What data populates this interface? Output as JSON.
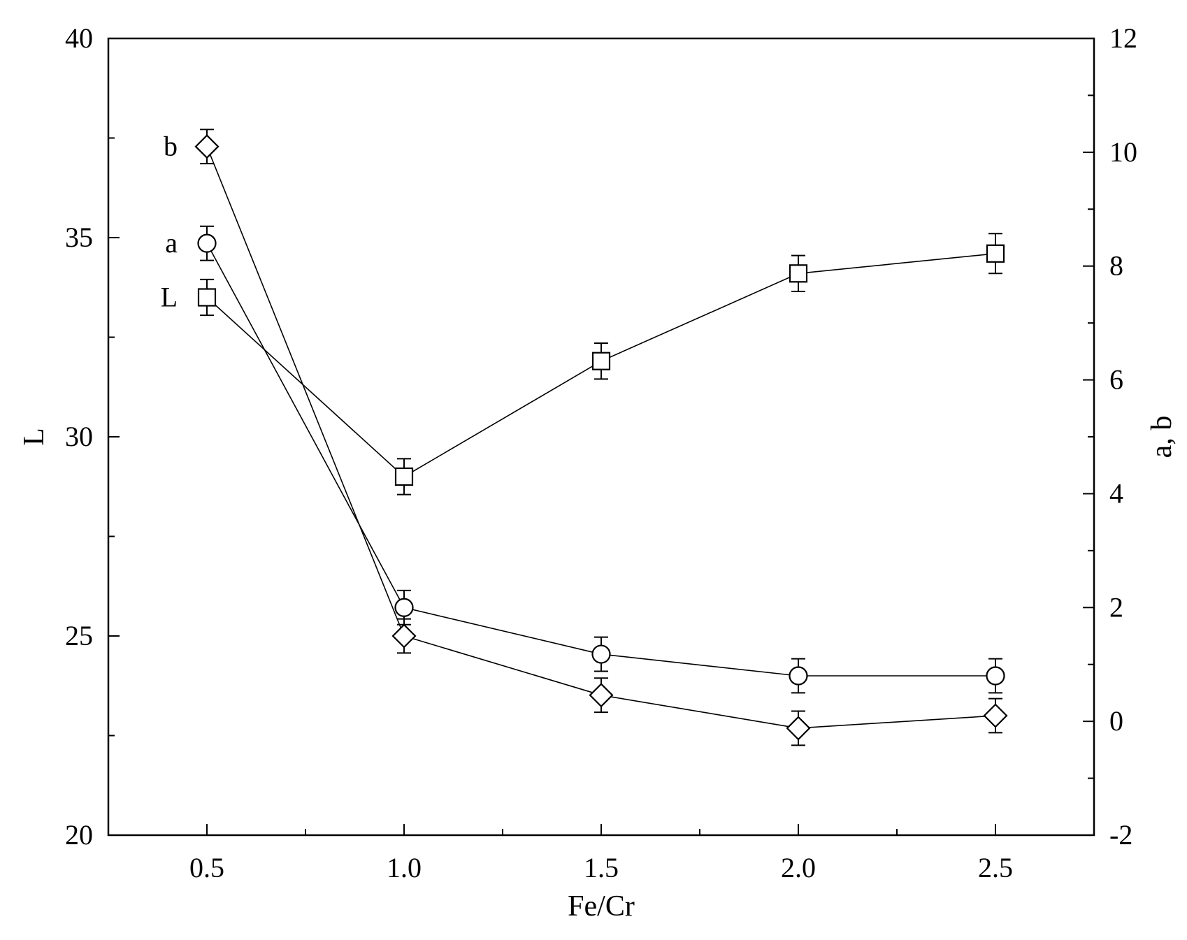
{
  "chart_data": {
    "type": "line",
    "title": "",
    "xlabel": "Fe/Cr",
    "ylabel_left": "L",
    "ylabel_right": "a, b",
    "x": [
      0.5,
      1.0,
      1.5,
      2.0,
      2.5
    ],
    "xlim": [
      0.25,
      2.75
    ],
    "ylim_left": [
      20,
      40
    ],
    "ylim_right": [
      -2,
      12
    ],
    "x_ticks": [
      0.5,
      1.0,
      1.5,
      2.0,
      2.5
    ],
    "x_tick_labels": [
      "0.5",
      "1.0",
      "1.5",
      "2.0",
      "2.5"
    ],
    "x_minor_ticks": [
      0.75,
      1.25,
      1.75,
      2.25
    ],
    "y_left_ticks": [
      20,
      25,
      30,
      35,
      40
    ],
    "y_left_tick_labels": [
      "20",
      "25",
      "30",
      "35",
      "40"
    ],
    "y_left_minor_ticks": [
      22.5,
      27.5,
      32.5,
      37.5
    ],
    "y_right_ticks": [
      -2,
      0,
      2,
      4,
      6,
      8,
      10,
      12
    ],
    "y_right_tick_labels": [
      "-2",
      "0",
      "2",
      "4",
      "6",
      "8",
      "10",
      "12"
    ],
    "y_right_minor_ticks": [
      -1,
      1,
      3,
      5,
      7,
      9,
      11
    ],
    "grid": false,
    "legend": "none",
    "series": [
      {
        "name": "L",
        "axis": "left",
        "marker": "square",
        "values": [
          33.5,
          29.0,
          31.9,
          34.1,
          34.6
        ],
        "errors": [
          0.45,
          0.45,
          0.45,
          0.45,
          0.5
        ]
      },
      {
        "name": "a",
        "axis": "right",
        "marker": "circle",
        "values": [
          8.4,
          2.0,
          1.18,
          0.8,
          0.8
        ],
        "errors": [
          0.3,
          0.3,
          0.3,
          0.3,
          0.3
        ]
      },
      {
        "name": "b",
        "axis": "right",
        "marker": "diamond",
        "values": [
          10.1,
          1.5,
          0.46,
          -0.12,
          0.1
        ],
        "errors": [
          0.3,
          0.3,
          0.3,
          0.3,
          0.3
        ]
      }
    ],
    "colors": {
      "line": "#000000",
      "background": "#ffffff"
    }
  }
}
